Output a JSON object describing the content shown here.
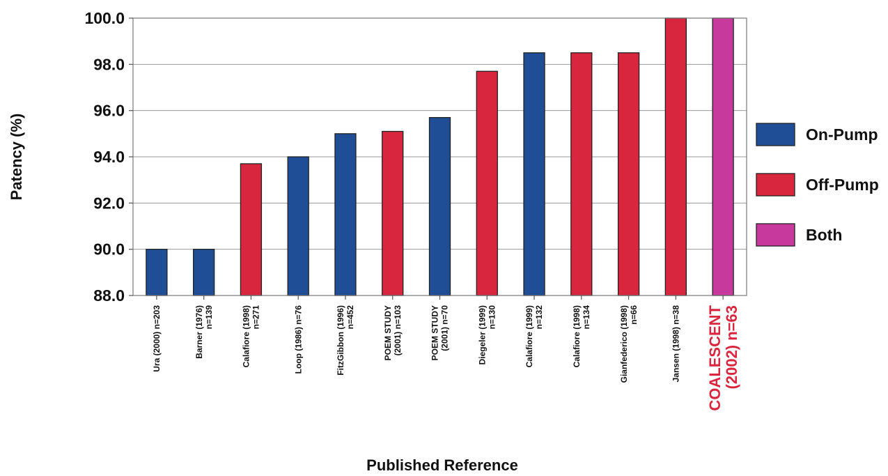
{
  "chart_data": {
    "type": "bar",
    "ylabel": "Patency (%)",
    "xlabel": "Published Reference",
    "ylim": [
      88.0,
      100.0
    ],
    "yticks": [
      "88.0",
      "90.0",
      "92.0",
      "94.0",
      "96.0",
      "98.0",
      "100.0"
    ],
    "grid": true,
    "legend_position": "right",
    "groups": [
      {
        "name": "On-Pump",
        "color": "#1f4e96"
      },
      {
        "name": "Off-Pump",
        "color": "#d9263f"
      },
      {
        "name": "Both",
        "color": "#c8399e"
      }
    ],
    "categories": [
      {
        "label": [
          "Ura (2000) n=203"
        ],
        "value": 90.0,
        "group": "On-Pump"
      },
      {
        "label": [
          "Barner (1976)",
          "n=139"
        ],
        "value": 90.0,
        "group": "On-Pump"
      },
      {
        "label": [
          "Calafiore (1998)",
          "n=271"
        ],
        "value": 93.7,
        "group": "Off-Pump"
      },
      {
        "label": [
          "Loop (1986) n=76"
        ],
        "value": 94.0,
        "group": "On-Pump"
      },
      {
        "label": [
          "FitzGibbon (1996)",
          "n=452"
        ],
        "value": 95.0,
        "group": "On-Pump"
      },
      {
        "label": [
          "POEM STUDY",
          "(2001) n=103"
        ],
        "value": 95.1,
        "group": "Off-Pump"
      },
      {
        "label": [
          "POEM STUDY",
          "(2001) n=70"
        ],
        "value": 95.7,
        "group": "On-Pump"
      },
      {
        "label": [
          "Diegeler (1999)",
          "n=130"
        ],
        "value": 97.7,
        "group": "Off-Pump"
      },
      {
        "label": [
          "Calafiore (1999)",
          "n=132"
        ],
        "value": 98.5,
        "group": "On-Pump"
      },
      {
        "label": [
          "Calafiore (1998)",
          "n=134"
        ],
        "value": 98.5,
        "group": "Off-Pump"
      },
      {
        "label": [
          "Gianfederico (1998)",
          "n=66"
        ],
        "value": 98.5,
        "group": "Off-Pump"
      },
      {
        "label": [
          "Jansen (1998) n=38"
        ],
        "value": 100.0,
        "group": "Off-Pump"
      },
      {
        "label": [
          "COALESCENT",
          "(2002) n=63"
        ],
        "value": 100.0,
        "group": "Both",
        "highlight": true
      }
    ]
  }
}
